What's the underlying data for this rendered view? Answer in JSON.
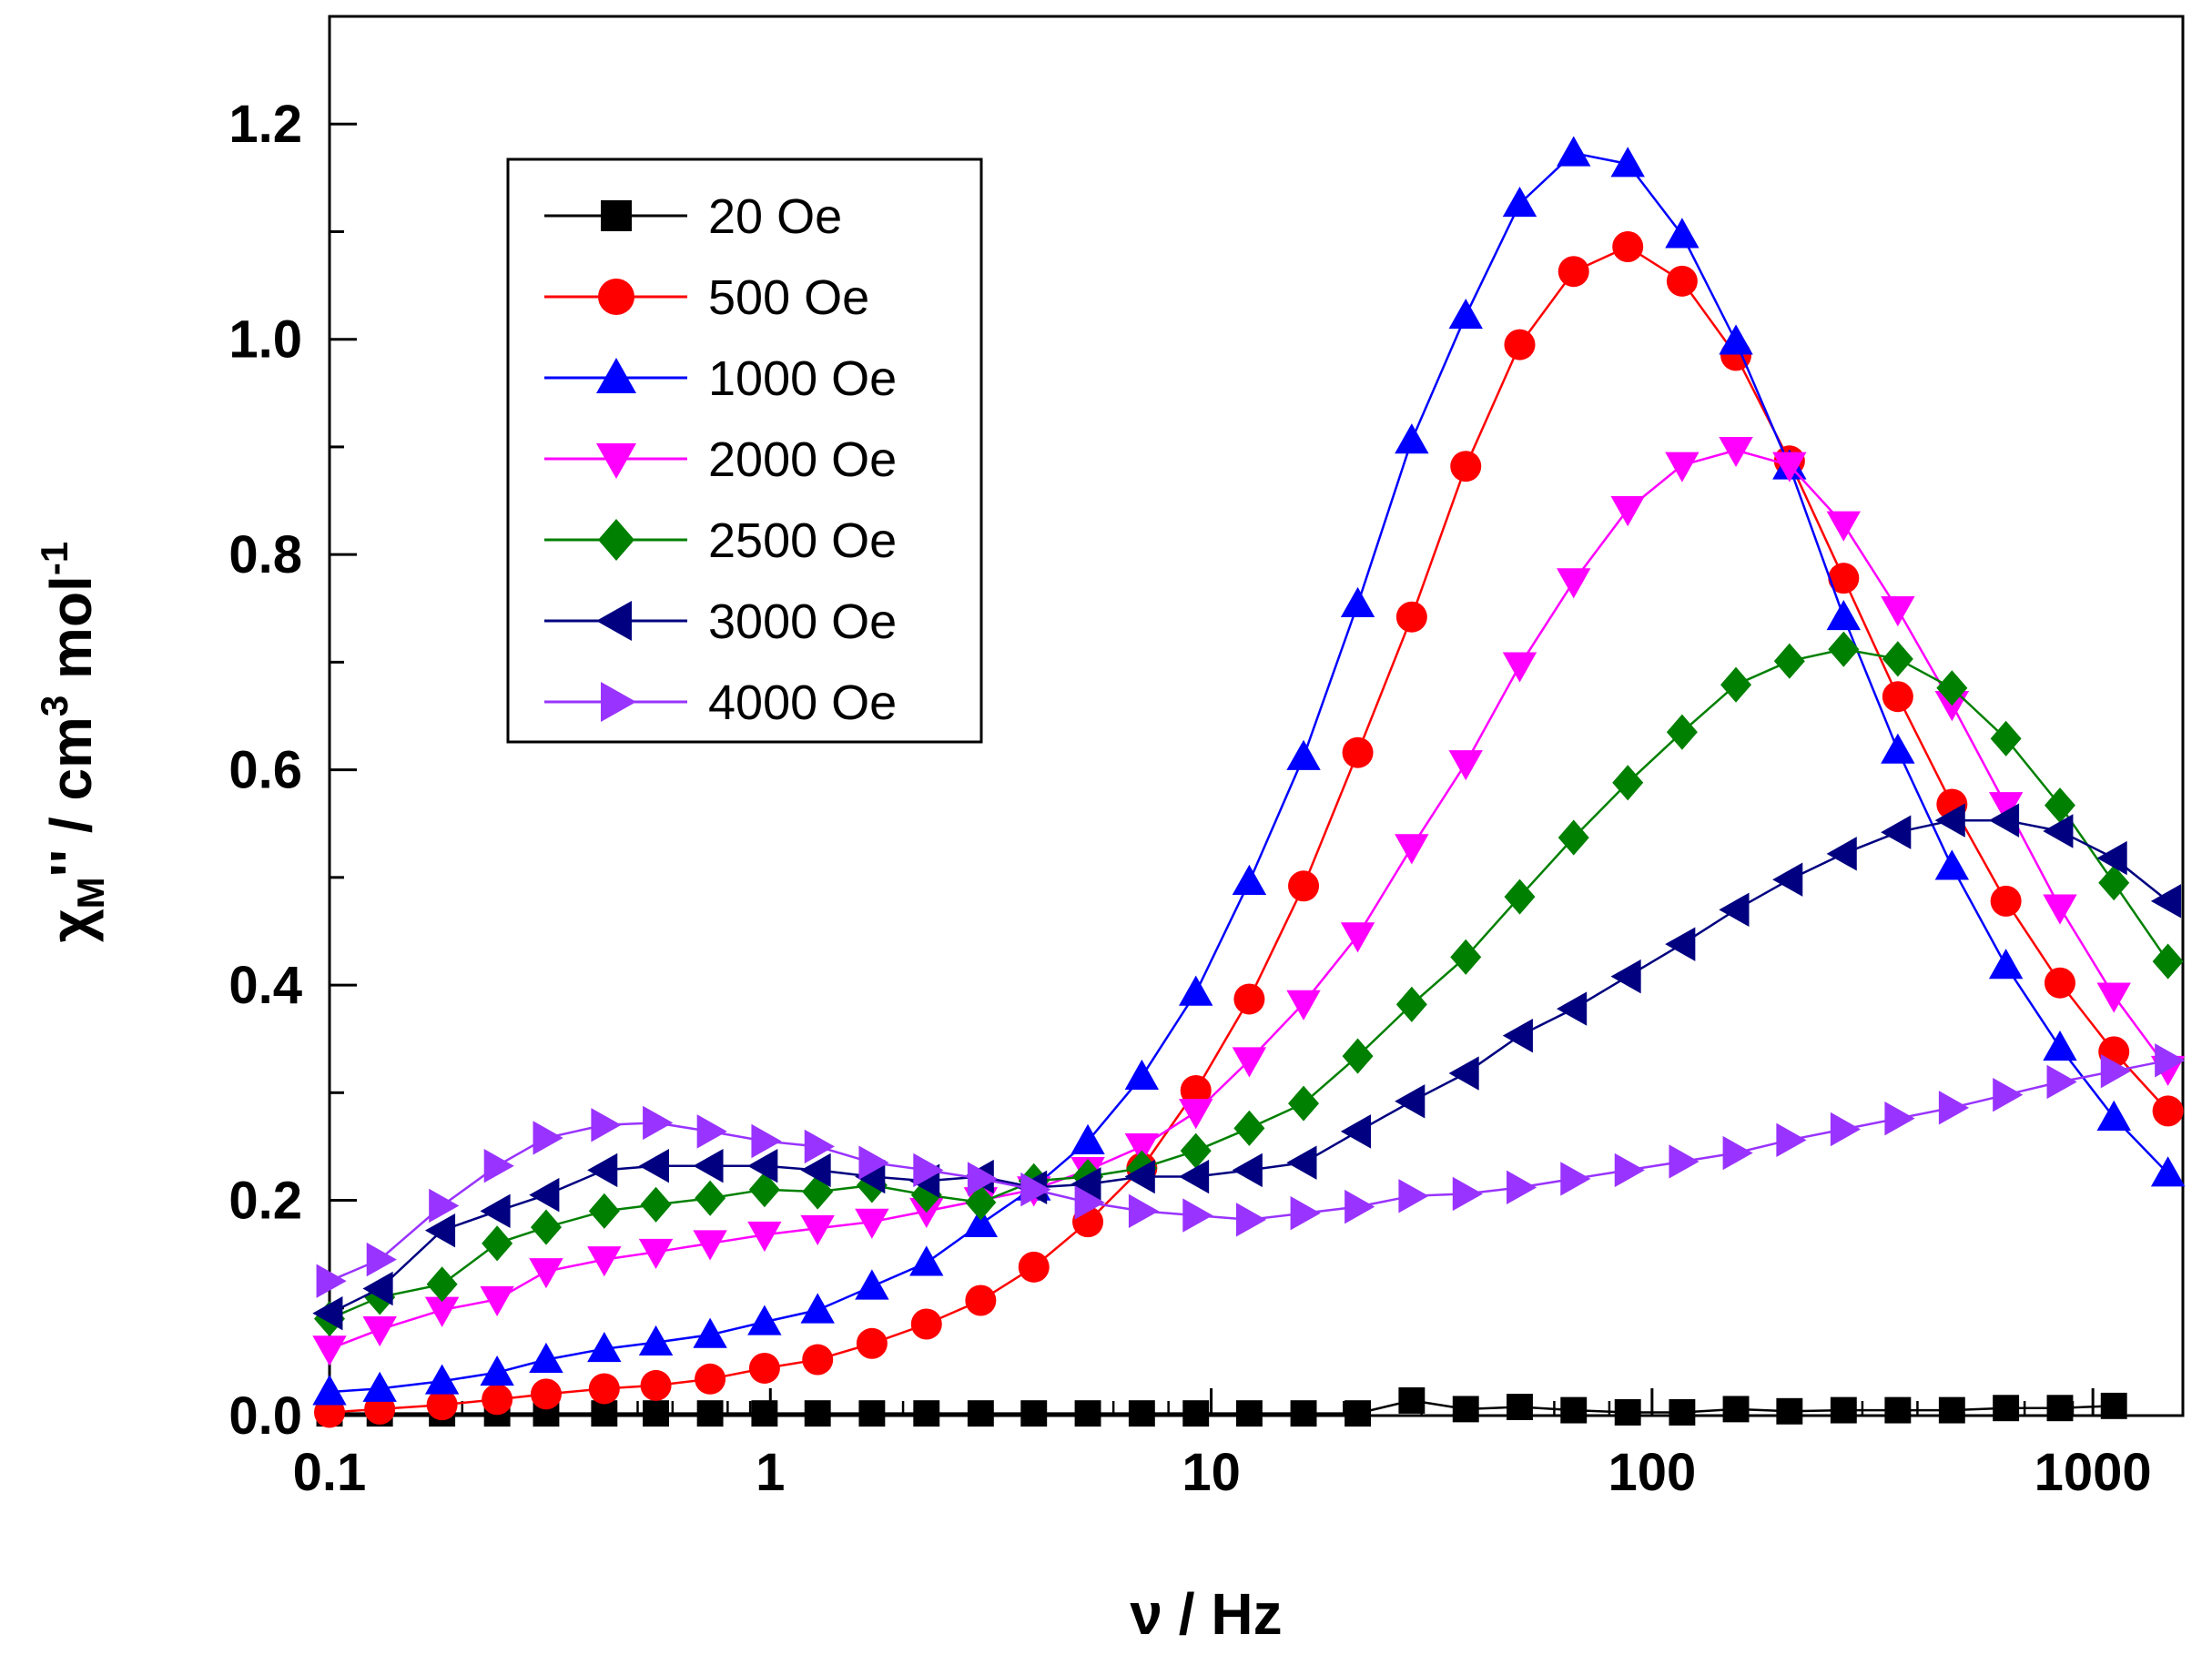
{
  "chart_data": {
    "type": "scatter",
    "xlabel": "ν / Hz",
    "ylabel": {
      "base": "χ",
      "sub": "M",
      "rest": "'' / cm",
      "sup1": "3",
      "rest2": " mol",
      "sup2": "-1"
    },
    "xscale": "log",
    "xlim": [
      0.1,
      1600
    ],
    "ylim": [
      0,
      1.3
    ],
    "x_ticks": [
      0.1,
      1,
      10,
      100,
      1000
    ],
    "x_tick_labels": [
      "0.1",
      "1",
      "10",
      "100",
      "1000"
    ],
    "y_ticks": [
      0,
      0.2,
      0.4,
      0.6,
      0.8,
      1.0,
      1.2
    ],
    "y_tick_labels": [
      "0.0",
      "0.2",
      "0.4",
      "0.6",
      "0.8",
      "1.0",
      "1.2"
    ],
    "grid": false,
    "legend_position": "top-left",
    "series": [
      {
        "name": "20 Oe",
        "color": "#000000",
        "marker": "square",
        "x": [
          0.1,
          0.13,
          0.18,
          0.24,
          0.31,
          0.42,
          0.55,
          0.73,
          0.97,
          1.28,
          1.7,
          2.26,
          3,
          3.96,
          5.25,
          6.96,
          9.23,
          12.2,
          16.2,
          21.5,
          28.5,
          37.8,
          50.1,
          66.4,
          88.1,
          117,
          155,
          205,
          272,
          361,
          479,
          635,
          842,
          1116
        ],
        "y": [
          0.002,
          0.002,
          0.002,
          0.002,
          0.002,
          0.002,
          0.002,
          0.002,
          0.002,
          0.002,
          0.002,
          0.002,
          0.002,
          0.002,
          0.002,
          0.002,
          0.002,
          0.002,
          0.002,
          0.002,
          0.014,
          0.006,
          0.008,
          0.005,
          0.003,
          0.003,
          0.006,
          0.004,
          0.005,
          0.005,
          0.005,
          0.007,
          0.007,
          0.009
        ]
      },
      {
        "name": "500 Oe",
        "color": "#ff0000",
        "marker": "circle",
        "x": [
          0.1,
          0.13,
          0.18,
          0.24,
          0.31,
          0.42,
          0.55,
          0.73,
          0.97,
          1.28,
          1.7,
          2.26,
          3,
          3.96,
          5.25,
          6.96,
          9.23,
          12.2,
          16.2,
          21.5,
          28.5,
          37.8,
          50.1,
          66.4,
          88.1,
          117,
          155,
          205,
          272,
          361,
          479,
          635,
          842,
          1116,
          1480
        ],
        "y": [
          0.003,
          0.006,
          0.01,
          0.015,
          0.02,
          0.025,
          0.028,
          0.034,
          0.044,
          0.052,
          0.067,
          0.085,
          0.107,
          0.138,
          0.18,
          0.23,
          0.302,
          0.387,
          0.492,
          0.616,
          0.742,
          0.882,
          0.995,
          1.063,
          1.086,
          1.054,
          0.985,
          0.887,
          0.778,
          0.668,
          0.568,
          0.478,
          0.402,
          0.338,
          0.283
        ]
      },
      {
        "name": "1000 Oe",
        "color": "#0000ff",
        "marker": "triangle-up",
        "x": [
          0.1,
          0.13,
          0.18,
          0.24,
          0.31,
          0.42,
          0.55,
          0.73,
          0.97,
          1.28,
          1.7,
          2.26,
          3,
          3.96,
          5.25,
          6.96,
          9.23,
          12.2,
          16.2,
          21.5,
          28.5,
          37.8,
          50.1,
          66.4,
          88.1,
          117,
          155,
          205,
          272,
          361,
          479,
          635,
          842,
          1116,
          1480
        ],
        "y": [
          0.022,
          0.025,
          0.032,
          0.04,
          0.052,
          0.062,
          0.068,
          0.075,
          0.087,
          0.098,
          0.12,
          0.142,
          0.178,
          0.212,
          0.255,
          0.315,
          0.393,
          0.496,
          0.612,
          0.754,
          0.906,
          1.022,
          1.126,
          1.173,
          1.163,
          1.097,
          0.998,
          0.882,
          0.742,
          0.618,
          0.51,
          0.418,
          0.342,
          0.277,
          0.225
        ]
      },
      {
        "name": "2000 Oe",
        "color": "#ff00ff",
        "marker": "triangle-down",
        "x": [
          0.1,
          0.13,
          0.18,
          0.24,
          0.31,
          0.42,
          0.55,
          0.73,
          0.97,
          1.28,
          1.7,
          2.26,
          3,
          3.96,
          5.25,
          6.96,
          9.23,
          12.2,
          16.2,
          21.5,
          28.5,
          37.8,
          50.1,
          66.4,
          88.1,
          117,
          155,
          205,
          272,
          361,
          479,
          635,
          842,
          1116,
          1480
        ],
        "y": [
          0.062,
          0.08,
          0.098,
          0.108,
          0.134,
          0.145,
          0.152,
          0.16,
          0.168,
          0.174,
          0.18,
          0.19,
          0.2,
          0.21,
          0.228,
          0.25,
          0.282,
          0.33,
          0.383,
          0.446,
          0.528,
          0.606,
          0.697,
          0.775,
          0.842,
          0.883,
          0.897,
          0.883,
          0.828,
          0.749,
          0.661,
          0.567,
          0.472,
          0.39,
          0.322
        ]
      },
      {
        "name": "2500 Oe",
        "color": "#008000",
        "marker": "diamond",
        "x": [
          0.1,
          0.13,
          0.18,
          0.24,
          0.31,
          0.42,
          0.55,
          0.73,
          0.97,
          1.28,
          1.7,
          2.26,
          3,
          3.96,
          5.25,
          6.96,
          9.23,
          12.2,
          16.2,
          21.5,
          28.5,
          37.8,
          50.1,
          66.4,
          88.1,
          117,
          155,
          205,
          272,
          361,
          479,
          635,
          842,
          1116,
          1480
        ],
        "y": [
          0.09,
          0.11,
          0.122,
          0.16,
          0.175,
          0.19,
          0.196,
          0.202,
          0.21,
          0.208,
          0.214,
          0.205,
          0.198,
          0.218,
          0.222,
          0.23,
          0.246,
          0.267,
          0.29,
          0.334,
          0.382,
          0.426,
          0.482,
          0.537,
          0.588,
          0.635,
          0.679,
          0.701,
          0.712,
          0.703,
          0.676,
          0.629,
          0.567,
          0.495,
          0.422
        ]
      },
      {
        "name": "3000 Oe",
        "color": "#000080",
        "marker": "triangle-left",
        "x": [
          0.1,
          0.13,
          0.18,
          0.24,
          0.31,
          0.42,
          0.55,
          0.73,
          0.97,
          1.28,
          1.7,
          2.26,
          3,
          3.96,
          5.25,
          6.96,
          9.23,
          12.2,
          16.2,
          21.5,
          28.5,
          37.8,
          50.1,
          66.4,
          88.1,
          117,
          155,
          205,
          272,
          361,
          479,
          635,
          842,
          1116,
          1480
        ],
        "y": [
          0.095,
          0.118,
          0.172,
          0.19,
          0.205,
          0.228,
          0.232,
          0.232,
          0.232,
          0.228,
          0.222,
          0.218,
          0.222,
          0.212,
          0.215,
          0.222,
          0.222,
          0.228,
          0.235,
          0.264,
          0.292,
          0.318,
          0.353,
          0.378,
          0.408,
          0.438,
          0.47,
          0.498,
          0.522,
          0.542,
          0.553,
          0.553,
          0.543,
          0.518,
          0.478
        ]
      },
      {
        "name": "4000 Oe",
        "color": "#9933ff",
        "marker": "triangle-right",
        "x": [
          0.1,
          0.13,
          0.18,
          0.24,
          0.31,
          0.42,
          0.55,
          0.73,
          0.97,
          1.28,
          1.7,
          2.26,
          3,
          3.96,
          5.25,
          6.96,
          9.23,
          12.2,
          16.2,
          21.5,
          28.5,
          37.8,
          50.1,
          66.4,
          88.1,
          117,
          155,
          205,
          272,
          361,
          479,
          635,
          842,
          1116,
          1480
        ],
        "y": [
          0.125,
          0.145,
          0.195,
          0.232,
          0.258,
          0.27,
          0.272,
          0.264,
          0.255,
          0.25,
          0.235,
          0.228,
          0.22,
          0.21,
          0.198,
          0.19,
          0.186,
          0.182,
          0.188,
          0.194,
          0.204,
          0.206,
          0.212,
          0.22,
          0.228,
          0.236,
          0.244,
          0.256,
          0.266,
          0.276,
          0.286,
          0.298,
          0.31,
          0.32,
          0.33
        ]
      }
    ]
  }
}
